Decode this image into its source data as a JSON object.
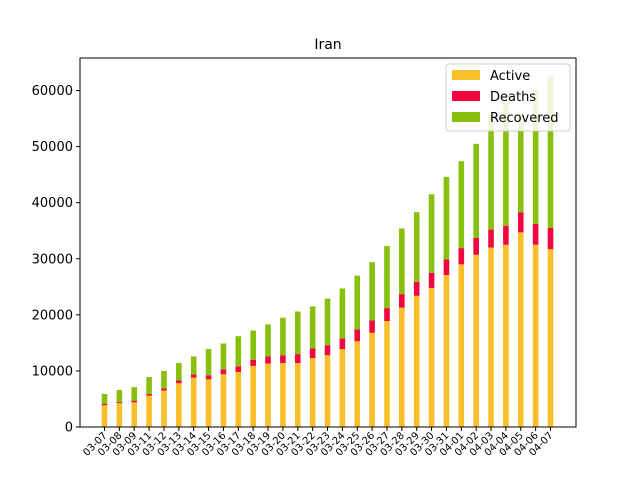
{
  "chart_data": {
    "type": "bar",
    "stacked": true,
    "title": "Iran",
    "xlabel": "",
    "ylabel": "",
    "ylim": [
      0,
      65800
    ],
    "yticks": [
      0,
      10000,
      20000,
      30000,
      40000,
      50000,
      60000
    ],
    "legend_position": "top-right",
    "categories": [
      "03-07",
      "03-08",
      "03-09",
      "03-11",
      "03-12",
      "03-13",
      "03-14",
      "03-15",
      "03-16",
      "03-17",
      "03-18",
      "03-19",
      "03-20",
      "03-21",
      "03-22",
      "03-23",
      "03-24",
      "03-25",
      "03-26",
      "03-27",
      "03-28",
      "03-29",
      "03-30",
      "03-31",
      "04-01",
      "04-02",
      "04-03",
      "04-04",
      "04-05",
      "04-06",
      "04-07"
    ],
    "series": [
      {
        "name": "Active",
        "color": "#f9bf2b",
        "values": [
          3900,
          4300,
          4400,
          5600,
          6500,
          7800,
          8800,
          8500,
          9400,
          9800,
          10900,
          11300,
          11400,
          11400,
          12300,
          12800,
          13900,
          15300,
          16800,
          18900,
          21300,
          23400,
          24800,
          27100,
          29000,
          30700,
          32000,
          32500,
          34700,
          32500,
          31700
        ]
      },
      {
        "name": "Deaths",
        "color": "#f0073f",
        "values": [
          200,
          200,
          300,
          300,
          400,
          500,
          600,
          700,
          900,
          1000,
          1100,
          1300,
          1400,
          1600,
          1700,
          1800,
          1900,
          2100,
          2200,
          2300,
          2400,
          2500,
          2700,
          2800,
          2900,
          3000,
          3200,
          3400,
          3600,
          3700,
          3800
        ]
      },
      {
        "name": "Recovered",
        "color": "#89c00d",
        "values": [
          1800,
          2100,
          2400,
          3000,
          3100,
          3100,
          3200,
          4700,
          4600,
          5400,
          5200,
          5700,
          6700,
          7600,
          7500,
          8300,
          8900,
          9600,
          10400,
          11100,
          11700,
          12400,
          14000,
          14700,
          15500,
          16800,
          20500,
          22000,
          17700,
          23900,
          27000
        ]
      }
    ]
  }
}
